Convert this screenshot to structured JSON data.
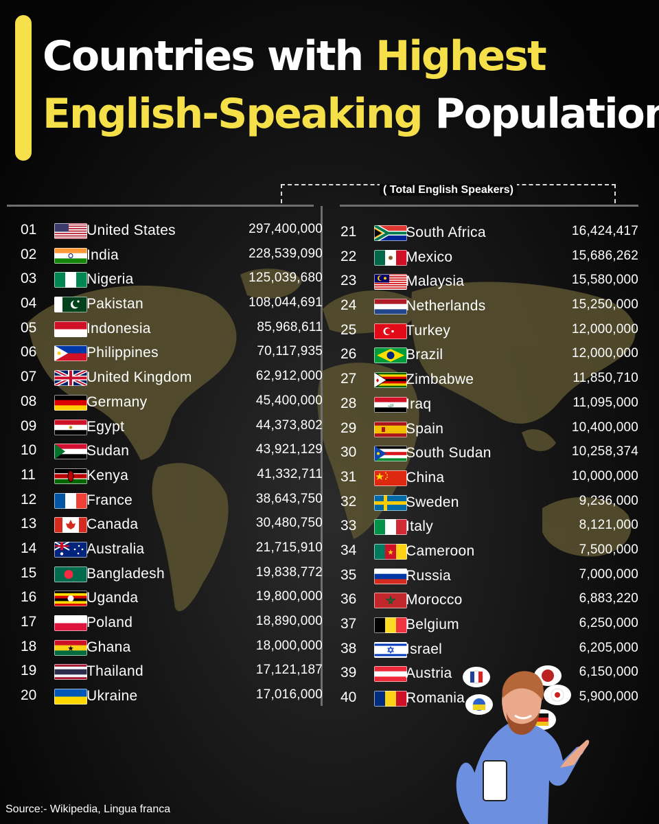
{
  "title": {
    "line1_white": "Countries with ",
    "line1_yellow": "Highest",
    "line2_yellow": "English-Speaking",
    "line2_white": " Population"
  },
  "header_label": "( Total English Speakers)",
  "source": "Source:-  Wikipedia, Lingua franca",
  "colors": {
    "accent": "#f5e04a",
    "background": "#0b0b0b",
    "divider": "#6f6f6f",
    "map": "#5a5230"
  },
  "chart_data": {
    "type": "table",
    "title": "Countries with Highest English-Speaking Population",
    "value_label": "( Total English Speakers)",
    "rows": [
      {
        "rank": "01",
        "country": "United States",
        "value": 297400000,
        "display": "297,400,000",
        "flag": "us"
      },
      {
        "rank": "02",
        "country": "India",
        "value": 228539090,
        "display": "228,539,090",
        "flag": "in"
      },
      {
        "rank": "03",
        "country": "Nigeria",
        "value": 125039680,
        "display": "125,039,680",
        "flag": "ng"
      },
      {
        "rank": "04",
        "country": "Pakistan",
        "value": 108044691,
        "display": "108,044,691",
        "flag": "pk"
      },
      {
        "rank": "05",
        "country": "Indonesia",
        "value": 85968611,
        "display": "85,968,611",
        "flag": "id"
      },
      {
        "rank": "06",
        "country": "Philippines",
        "value": 70117935,
        "display": "70,117,935",
        "flag": "ph"
      },
      {
        "rank": "07",
        "country": "United Kingdom",
        "value": 62912000,
        "display": "62,912,000",
        "flag": "gb"
      },
      {
        "rank": "08",
        "country": "Germany",
        "value": 45400000,
        "display": "45,400,000",
        "flag": "de"
      },
      {
        "rank": "09",
        "country": "Egypt",
        "value": 44373802,
        "display": "44,373,802",
        "flag": "eg"
      },
      {
        "rank": "10",
        "country": "Sudan",
        "value": 43921129,
        "display": "43,921,129",
        "flag": "sd"
      },
      {
        "rank": "11",
        "country": "Kenya",
        "value": 41332711,
        "display": "41,332,711",
        "flag": "ke"
      },
      {
        "rank": "12",
        "country": "France",
        "value": 38643750,
        "display": "38,643,750",
        "flag": "fr"
      },
      {
        "rank": "13",
        "country": "Canada",
        "value": 30480750,
        "display": "30,480,750",
        "flag": "ca"
      },
      {
        "rank": "14",
        "country": "Australia",
        "value": 21715910,
        "display": "21,715,910",
        "flag": "au"
      },
      {
        "rank": "15",
        "country": "Bangladesh",
        "value": 19838772,
        "display": "19,838,772",
        "flag": "bd"
      },
      {
        "rank": "16",
        "country": "Uganda",
        "value": 19800000,
        "display": "19,800,000",
        "flag": "ug"
      },
      {
        "rank": "17",
        "country": "Poland",
        "value": 18890000,
        "display": "18,890,000",
        "flag": "pl"
      },
      {
        "rank": "18",
        "country": "Ghana",
        "value": 18000000,
        "display": "18,000,000",
        "flag": "gh"
      },
      {
        "rank": "19",
        "country": "Thailand",
        "value": 17121187,
        "display": "17,121,187",
        "flag": "th"
      },
      {
        "rank": "20",
        "country": "Ukraine",
        "value": 17016000,
        "display": "17,016,000",
        "flag": "ua"
      },
      {
        "rank": "21",
        "country": "South Africa",
        "value": 16424417,
        "display": "16,424,417",
        "flag": "za"
      },
      {
        "rank": "22",
        "country": "Mexico",
        "value": 15686262,
        "display": "15,686,262",
        "flag": "mx"
      },
      {
        "rank": "23",
        "country": "Malaysia",
        "value": 15580000,
        "display": "15,580,000",
        "flag": "my"
      },
      {
        "rank": "24",
        "country": "Netherlands",
        "value": 15250000,
        "display": "15,250,000",
        "flag": "nl"
      },
      {
        "rank": "25",
        "country": "Turkey",
        "value": 12000000,
        "display": "12,000,000",
        "flag": "tr"
      },
      {
        "rank": "26",
        "country": "Brazil",
        "value": 12000000,
        "display": "12,000,000",
        "flag": "br"
      },
      {
        "rank": "27",
        "country": "Zimbabwe",
        "value": 11850710,
        "display": "11,850,710",
        "flag": "zw"
      },
      {
        "rank": "28",
        "country": "Iraq",
        "value": 11095000,
        "display": "11,095,000",
        "flag": "iq"
      },
      {
        "rank": "29",
        "country": "Spain",
        "value": 10400000,
        "display": "10,400,000",
        "flag": "es"
      },
      {
        "rank": "30",
        "country": "South Sudan",
        "value": 10258374,
        "display": "10,258,374",
        "flag": "ss"
      },
      {
        "rank": "31",
        "country": "China",
        "value": 10000000,
        "display": "10,000,000",
        "flag": "cn"
      },
      {
        "rank": "32",
        "country": "Sweden",
        "value": 9236000,
        "display": "9,236,000",
        "flag": "se"
      },
      {
        "rank": "33",
        "country": "Italy",
        "value": 8121000,
        "display": "8,121,000",
        "flag": "it"
      },
      {
        "rank": "34",
        "country": "Cameroon",
        "value": 7500000,
        "display": "7,500,000",
        "flag": "cm"
      },
      {
        "rank": "35",
        "country": "Russia",
        "value": 7000000,
        "display": "7,000,000",
        "flag": "ru"
      },
      {
        "rank": "36",
        "country": "Morocco",
        "value": 6883220,
        "display": "6,883,220",
        "flag": "ma"
      },
      {
        "rank": "37",
        "country": "Belgium",
        "value": 6250000,
        "display": "6,250,000",
        "flag": "be"
      },
      {
        "rank": "38",
        "country": "Israel",
        "value": 6205000,
        "display": "6,205,000",
        "flag": "il"
      },
      {
        "rank": "39",
        "country": "Austria",
        "value": 6150000,
        "display": "6,150,000",
        "flag": "at"
      },
      {
        "rank": "40",
        "country": "Romania",
        "value": 5900000,
        "display": "5,900,000",
        "flag": "ro"
      }
    ]
  }
}
